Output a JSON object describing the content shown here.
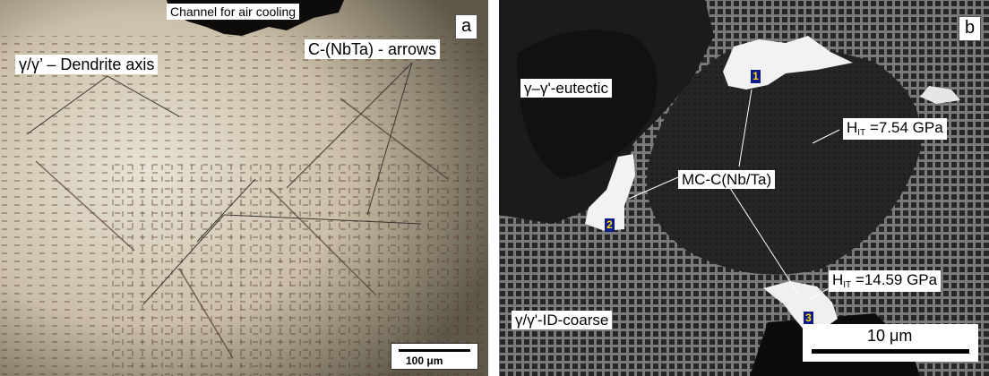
{
  "panel_a": {
    "letter": "a",
    "channel_label": "Channel for air cooling",
    "dendrite_label": "γ/γ’ – Dendrite axis",
    "carbide_label": "C-(NbTa) - arrows",
    "scale_label": "100 μm"
  },
  "panel_b": {
    "letter": "b",
    "eutectic_label": "γ–γ'-eutectic",
    "hardness_1": {
      "prefix": "H",
      "sub": "IT",
      "value": " =7.54 GPa"
    },
    "carbide_label": "MC-C(Nb/Ta)",
    "hardness_2": {
      "prefix": "H",
      "sub": "IT",
      "value": " =14.59 GPa"
    },
    "coarse_label": "γ/γ'-ID-coarse",
    "scale_label": "10 μm",
    "points": [
      "1",
      "2",
      "3"
    ]
  },
  "colors": {
    "panel_a_background": "#cfc6b4",
    "panel_b_background": "#3a3a3a",
    "carbide": "#f2f2f2",
    "point_marker": "#0d1a8a"
  }
}
